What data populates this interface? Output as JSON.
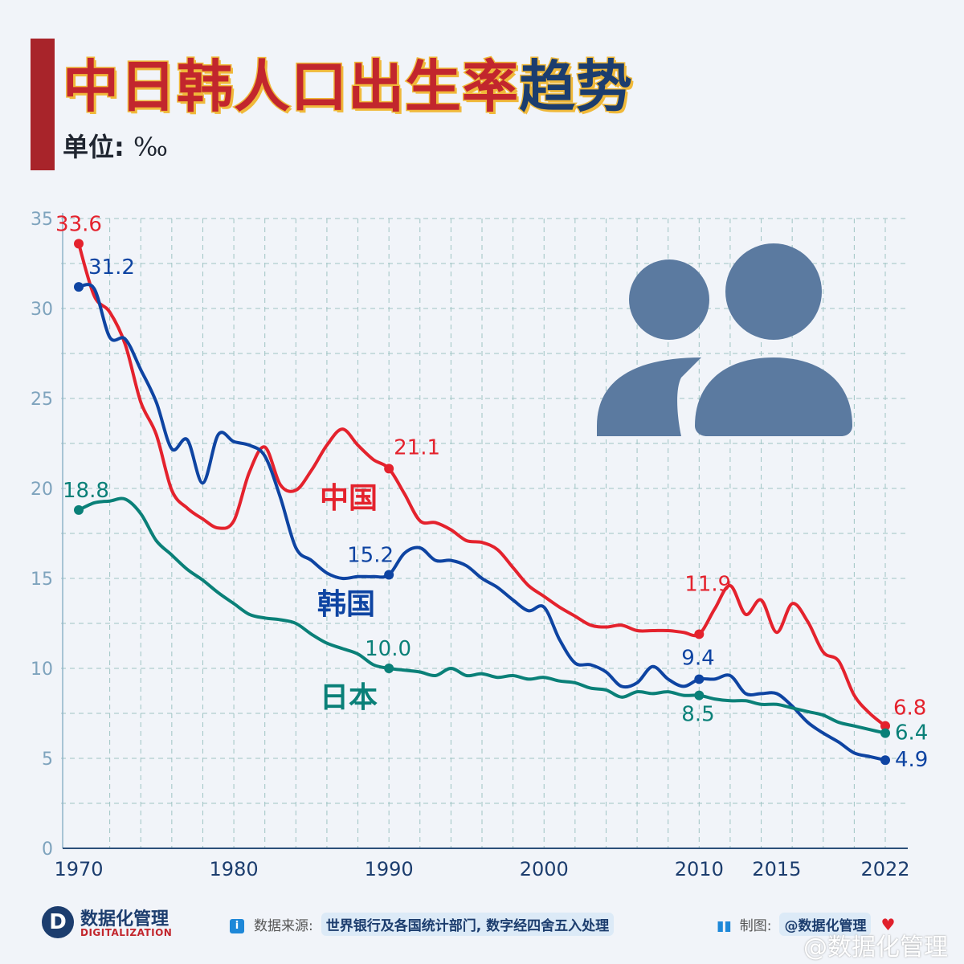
{
  "header": {
    "title_part1": "中日韩人口出生率",
    "title_part2": "趋势",
    "unit_label": "单位:",
    "unit_symbol": "‰"
  },
  "chart_data": {
    "type": "line",
    "xlim": [
      1970,
      2022
    ],
    "ylim": [
      0,
      35
    ],
    "x_ticks": [
      1970,
      1980,
      1990,
      2000,
      2010,
      2015,
      2022
    ],
    "y_ticks": [
      0,
      5,
      10,
      15,
      20,
      25,
      30,
      35
    ],
    "grid": true,
    "series": [
      {
        "name": "中国",
        "color": "#e4222d",
        "points": [
          [
            1970,
            33.6
          ],
          [
            1971,
            30.7
          ],
          [
            1972,
            29.8
          ],
          [
            1973,
            28.0
          ],
          [
            1974,
            24.8
          ],
          [
            1975,
            23.0
          ],
          [
            1976,
            19.9
          ],
          [
            1977,
            18.9
          ],
          [
            1978,
            18.3
          ],
          [
            1979,
            17.8
          ],
          [
            1980,
            18.2
          ],
          [
            1981,
            20.9
          ],
          [
            1982,
            22.3
          ],
          [
            1983,
            20.2
          ],
          [
            1984,
            19.9
          ],
          [
            1985,
            21.0
          ],
          [
            1986,
            22.4
          ],
          [
            1987,
            23.3
          ],
          [
            1988,
            22.4
          ],
          [
            1989,
            21.6
          ],
          [
            1990,
            21.1
          ],
          [
            1991,
            19.7
          ],
          [
            1992,
            18.2
          ],
          [
            1993,
            18.1
          ],
          [
            1994,
            17.7
          ],
          [
            1995,
            17.1
          ],
          [
            1996,
            17.0
          ],
          [
            1997,
            16.6
          ],
          [
            1998,
            15.6
          ],
          [
            1999,
            14.6
          ],
          [
            2000,
            14.0
          ],
          [
            2001,
            13.4
          ],
          [
            2002,
            12.9
          ],
          [
            2003,
            12.4
          ],
          [
            2004,
            12.3
          ],
          [
            2005,
            12.4
          ],
          [
            2006,
            12.1
          ],
          [
            2007,
            12.1
          ],
          [
            2008,
            12.1
          ],
          [
            2009,
            12.0
          ],
          [
            2010,
            11.9
          ],
          [
            2011,
            13.3
          ],
          [
            2012,
            14.6
          ],
          [
            2013,
            13.0
          ],
          [
            2014,
            13.8
          ],
          [
            2015,
            12.0
          ],
          [
            2016,
            13.6
          ],
          [
            2017,
            12.6
          ],
          [
            2018,
            10.9
          ],
          [
            2019,
            10.4
          ],
          [
            2020,
            8.5
          ],
          [
            2021,
            7.5
          ],
          [
            2022,
            6.8
          ]
        ]
      },
      {
        "name": "韩国",
        "color": "#0e44a2",
        "points": [
          [
            1970,
            31.2
          ],
          [
            1971,
            31.1
          ],
          [
            1972,
            28.4
          ],
          [
            1973,
            28.3
          ],
          [
            1974,
            26.6
          ],
          [
            1975,
            24.8
          ],
          [
            1976,
            22.2
          ],
          [
            1977,
            22.7
          ],
          [
            1978,
            20.3
          ],
          [
            1979,
            23.0
          ],
          [
            1980,
            22.6
          ],
          [
            1981,
            22.4
          ],
          [
            1982,
            21.8
          ],
          [
            1983,
            19.5
          ],
          [
            1984,
            16.7
          ],
          [
            1985,
            16.0
          ],
          [
            1986,
            15.3
          ],
          [
            1987,
            15.0
          ],
          [
            1988,
            15.1
          ],
          [
            1989,
            15.1
          ],
          [
            1990,
            15.2
          ],
          [
            1991,
            16.4
          ],
          [
            1992,
            16.7
          ],
          [
            1993,
            16.0
          ],
          [
            1994,
            16.0
          ],
          [
            1995,
            15.7
          ],
          [
            1996,
            15.0
          ],
          [
            1997,
            14.5
          ],
          [
            1998,
            13.8
          ],
          [
            1999,
            13.2
          ],
          [
            2000,
            13.4
          ],
          [
            2001,
            11.6
          ],
          [
            2002,
            10.3
          ],
          [
            2003,
            10.2
          ],
          [
            2004,
            9.8
          ],
          [
            2005,
            9.0
          ],
          [
            2006,
            9.2
          ],
          [
            2007,
            10.1
          ],
          [
            2008,
            9.4
          ],
          [
            2009,
            9.0
          ],
          [
            2010,
            9.4
          ],
          [
            2011,
            9.4
          ],
          [
            2012,
            9.6
          ],
          [
            2013,
            8.6
          ],
          [
            2014,
            8.6
          ],
          [
            2015,
            8.6
          ],
          [
            2016,
            7.9
          ],
          [
            2017,
            7.0
          ],
          [
            2018,
            6.4
          ],
          [
            2019,
            5.9
          ],
          [
            2020,
            5.3
          ],
          [
            2021,
            5.1
          ],
          [
            2022,
            4.9
          ]
        ]
      },
      {
        "name": "日本",
        "color": "#0a8078",
        "points": [
          [
            1970,
            18.8
          ],
          [
            1971,
            19.2
          ],
          [
            1972,
            19.3
          ],
          [
            1973,
            19.4
          ],
          [
            1974,
            18.6
          ],
          [
            1975,
            17.1
          ],
          [
            1976,
            16.3
          ],
          [
            1977,
            15.5
          ],
          [
            1978,
            14.9
          ],
          [
            1979,
            14.2
          ],
          [
            1980,
            13.6
          ],
          [
            1981,
            13.0
          ],
          [
            1982,
            12.8
          ],
          [
            1983,
            12.7
          ],
          [
            1984,
            12.5
          ],
          [
            1985,
            11.9
          ],
          [
            1986,
            11.4
          ],
          [
            1987,
            11.1
          ],
          [
            1988,
            10.8
          ],
          [
            1989,
            10.2
          ],
          [
            1990,
            10.0
          ],
          [
            1991,
            9.9
          ],
          [
            1992,
            9.8
          ],
          [
            1993,
            9.6
          ],
          [
            1994,
            10.0
          ],
          [
            1995,
            9.6
          ],
          [
            1996,
            9.7
          ],
          [
            1997,
            9.5
          ],
          [
            1998,
            9.6
          ],
          [
            1999,
            9.4
          ],
          [
            2000,
            9.5
          ],
          [
            2001,
            9.3
          ],
          [
            2002,
            9.2
          ],
          [
            2003,
            8.9
          ],
          [
            2004,
            8.8
          ],
          [
            2005,
            8.4
          ],
          [
            2006,
            8.7
          ],
          [
            2007,
            8.6
          ],
          [
            2008,
            8.7
          ],
          [
            2009,
            8.5
          ],
          [
            2010,
            8.5
          ],
          [
            2011,
            8.3
          ],
          [
            2012,
            8.2
          ],
          [
            2013,
            8.2
          ],
          [
            2014,
            8.0
          ],
          [
            2015,
            8.0
          ],
          [
            2016,
            7.8
          ],
          [
            2017,
            7.6
          ],
          [
            2018,
            7.4
          ],
          [
            2019,
            7.0
          ],
          [
            2020,
            6.8
          ],
          [
            2021,
            6.6
          ],
          [
            2022,
            6.4
          ]
        ]
      }
    ],
    "annotations": [
      {
        "series": 0,
        "x": 1970,
        "text": "33.6"
      },
      {
        "series": 0,
        "x": 1990,
        "text": "21.1"
      },
      {
        "series": 0,
        "x": 2010,
        "text": "11.9"
      },
      {
        "series": 0,
        "x": 2022,
        "text": "6.8"
      },
      {
        "series": 1,
        "x": 1970,
        "text": "31.2"
      },
      {
        "series": 1,
        "x": 1990,
        "text": "15.2"
      },
      {
        "series": 1,
        "x": 2010,
        "text": "9.4"
      },
      {
        "series": 1,
        "x": 2022,
        "text": "4.9"
      },
      {
        "series": 2,
        "x": 1970,
        "text": "18.8"
      },
      {
        "series": 2,
        "x": 1990,
        "text": "10.0"
      },
      {
        "series": 2,
        "x": 2010,
        "text": "8.5"
      },
      {
        "series": 2,
        "x": 2022,
        "text": "6.4"
      }
    ]
  },
  "footer": {
    "logo_letter": "D",
    "logo_cn": "数据化管理",
    "logo_en": "DIGITALIZATION",
    "source_label": "数据来源:",
    "source_text": "世界银行及各国统计部门, 数字经四舍五入处理",
    "maker_label": "制图:",
    "maker_text": "@数据化管理",
    "watermark": "@数据化管理"
  },
  "icon_name": "users-icon",
  "icon_color": "#5b7aa0"
}
